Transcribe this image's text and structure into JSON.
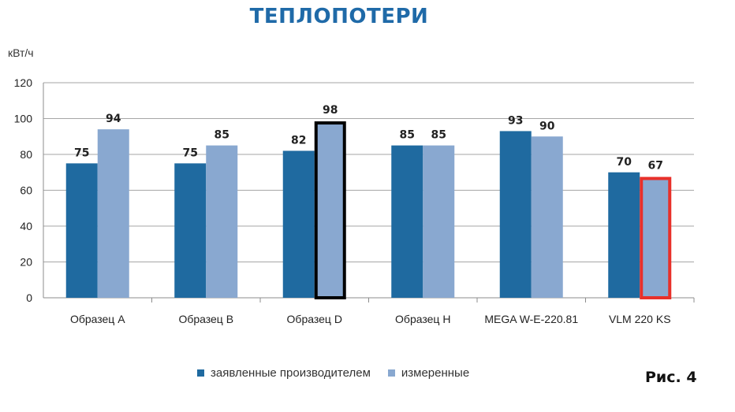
{
  "header": {
    "title": "ТЕПЛОПОТЕРИ",
    "unit": "кВт/ч",
    "figure_label": "Рис. 4"
  },
  "chart_data": {
    "type": "bar",
    "title": "ТЕПЛОПОТЕРИ",
    "ylabel": "кВт/ч",
    "xlabel": "",
    "ylim": [
      0,
      120
    ],
    "yticks": [
      0,
      20,
      40,
      60,
      80,
      100,
      120
    ],
    "grid": true,
    "legend_position": "bottom",
    "categories": [
      "Образец А",
      "Образец В",
      "Образец D",
      "Образец Н",
      "MEGA W-E-220.81",
      "VLM 220 KS"
    ],
    "series": [
      {
        "name": "заявленные производителем",
        "color": "#1f6aa0",
        "values": [
          75,
          75,
          82,
          85,
          93,
          70
        ]
      },
      {
        "name": "измеренные",
        "color": "#89a8d0",
        "values": [
          94,
          85,
          98,
          85,
          90,
          67
        ]
      }
    ],
    "highlights": [
      {
        "category": "Образец D",
        "series": "измеренные",
        "outline": "#000000"
      },
      {
        "category": "VLM 220 KS",
        "series": "измеренные",
        "outline": "#e8302a"
      }
    ]
  }
}
